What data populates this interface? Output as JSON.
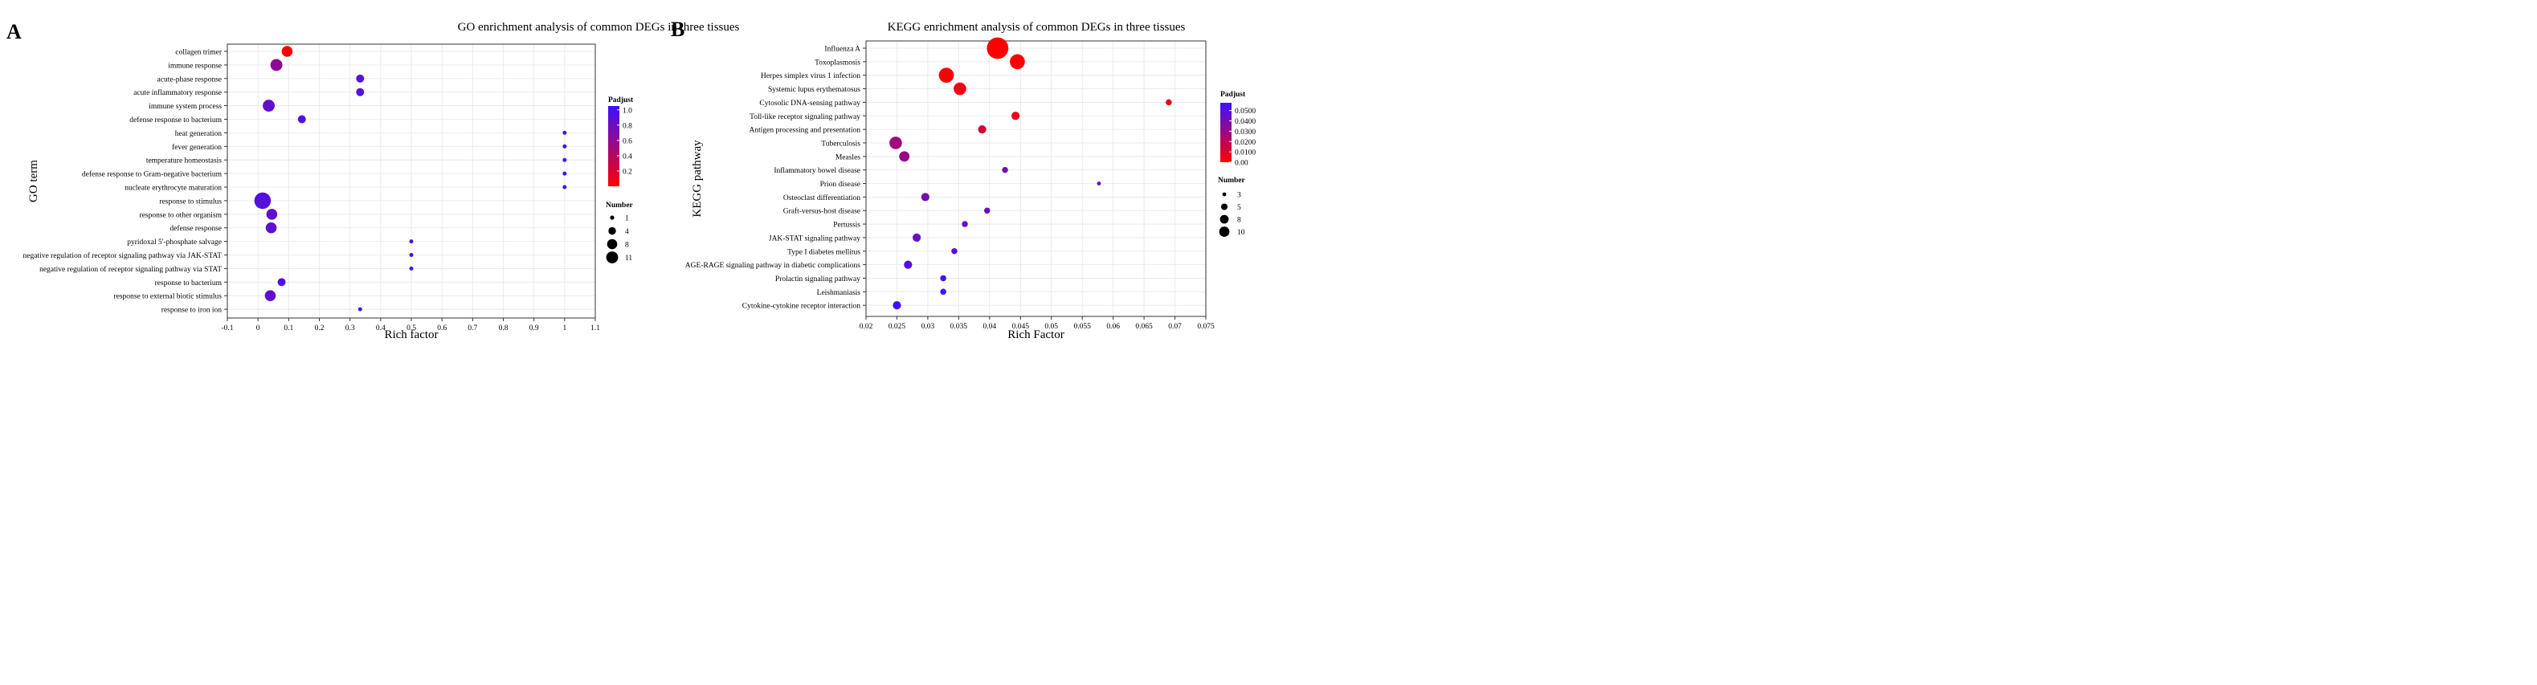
{
  "chart_data": [
    {
      "panel_label": "A",
      "type": "scatter",
      "title": "GO enrichment analysis of common DEGs in three tissues",
      "xlabel": "Rich factor",
      "ylabel": "GO term",
      "xlim": [
        -0.1,
        1.1
      ],
      "xticks": [
        "-0.1",
        "0",
        "0.1",
        "0.2",
        "0.3",
        "0.4",
        "0.5",
        "0.6",
        "0.7",
        "0.8",
        "0.9",
        "1",
        "1.1"
      ],
      "grid": true,
      "categories": [
        "collagen trimer",
        "immune response",
        "acute-phase response",
        "acute inflammatory response",
        "immune system process",
        "defense response to bacterium",
        "heat generation",
        "fever generation",
        "temperature homeostasis",
        "defense response to Gram-negative bacterium",
        "nucleate erythrocyte maturation",
        "response to stimulus",
        "response to other organism",
        "defense response",
        "pyridoxal 5'-phosphate salvage",
        "negative regulation of receptor signaling pathway via JAK-STAT",
        "negative regulation of receptor signaling pathway via STAT",
        "response to bacterium",
        "response to external biotic stimulus",
        "response to iron ion"
      ],
      "points": [
        {
          "x": 0.095,
          "padj": 0.0,
          "number": 4
        },
        {
          "x": 0.06,
          "padj": 0.6,
          "number": 5
        },
        {
          "x": 0.333,
          "padj": 0.9,
          "number": 2
        },
        {
          "x": 0.333,
          "padj": 0.9,
          "number": 2
        },
        {
          "x": 0.035,
          "padj": 0.85,
          "number": 5
        },
        {
          "x": 0.143,
          "padj": 0.95,
          "number": 2
        },
        {
          "x": 1.0,
          "padj": 1.0,
          "number": 1
        },
        {
          "x": 1.0,
          "padj": 1.0,
          "number": 1
        },
        {
          "x": 1.0,
          "padj": 1.0,
          "number": 1
        },
        {
          "x": 1.0,
          "padj": 1.0,
          "number": 1
        },
        {
          "x": 1.0,
          "padj": 1.0,
          "number": 1
        },
        {
          "x": 0.015,
          "padj": 0.9,
          "number": 11
        },
        {
          "x": 0.045,
          "padj": 0.85,
          "number": 4
        },
        {
          "x": 0.043,
          "padj": 0.85,
          "number": 4
        },
        {
          "x": 0.5,
          "padj": 1.0,
          "number": 1
        },
        {
          "x": 0.5,
          "padj": 1.0,
          "number": 1
        },
        {
          "x": 0.5,
          "padj": 1.0,
          "number": 1
        },
        {
          "x": 0.077,
          "padj": 0.95,
          "number": 2
        },
        {
          "x": 0.04,
          "padj": 0.85,
          "number": 4
        },
        {
          "x": 0.333,
          "padj": 1.0,
          "number": 1
        }
      ],
      "color_legend": {
        "title": "Padjust",
        "ticks": [
          "1.0",
          "0.8",
          "0.6",
          "0.4",
          "0.2"
        ],
        "min": 0.0,
        "max": 1.05,
        "low_color": "#ff0000",
        "high_color": "#3b12ff"
      },
      "size_legend": {
        "title": "Number",
        "labels": [
          "1",
          "4",
          "8",
          "11"
        ],
        "values": [
          1,
          4,
          8,
          11
        ]
      }
    },
    {
      "panel_label": "B",
      "type": "scatter",
      "title": "KEGG enrichment analysis of common DEGs in three tissues",
      "xlabel": "Rich Factor",
      "ylabel": "KEGG pathway",
      "xlim": [
        0.02,
        0.075
      ],
      "xticks": [
        "0.02",
        "0.025",
        "0.03",
        "0.035",
        "0.04",
        "0.045",
        "0.05",
        "0.055",
        "0.06",
        "0.065",
        "0.07",
        "0.075"
      ],
      "grid": true,
      "categories": [
        "Influenza A",
        "Toxoplasmosis",
        "Herpes simplex virus 1 infection",
        "Systemic lupus erythematosus",
        "Cytosolic DNA-sensing pathway",
        "Toll-like receptor signaling pathway",
        "Antigen processing and presentation",
        "Tuberculosis",
        "Measles",
        "Inflammatory bowel disease",
        "Prion disease",
        "Osteoclast differentiation",
        "Graft-versus-host disease",
        "Pertussis",
        "JAK-STAT signaling pathway",
        "Type I diabetes mellitus",
        "AGE-RAGE signaling pathway in diabetic complications",
        "Prolactin signaling pathway",
        "Leishmaniasis",
        "Cytokine-cytokine receptor interaction"
      ],
      "points": [
        {
          "x": 0.0413,
          "padj": 0.0,
          "number": 11
        },
        {
          "x": 0.0445,
          "padj": 0.0,
          "number": 8
        },
        {
          "x": 0.033,
          "padj": 0.002,
          "number": 8
        },
        {
          "x": 0.0352,
          "padj": 0.004,
          "number": 7
        },
        {
          "x": 0.069,
          "padj": 0.006,
          "number": 4
        },
        {
          "x": 0.0442,
          "padj": 0.006,
          "number": 5
        },
        {
          "x": 0.0388,
          "padj": 0.012,
          "number": 5
        },
        {
          "x": 0.0248,
          "padj": 0.028,
          "number": 7
        },
        {
          "x": 0.0262,
          "padj": 0.03,
          "number": 6
        },
        {
          "x": 0.0425,
          "padj": 0.04,
          "number": 4
        },
        {
          "x": 0.0577,
          "padj": 0.045,
          "number": 3
        },
        {
          "x": 0.0296,
          "padj": 0.04,
          "number": 5
        },
        {
          "x": 0.0396,
          "padj": 0.045,
          "number": 4
        },
        {
          "x": 0.036,
          "padj": 0.045,
          "number": 4
        },
        {
          "x": 0.0282,
          "padj": 0.045,
          "number": 5
        },
        {
          "x": 0.0343,
          "padj": 0.05,
          "number": 4
        },
        {
          "x": 0.0268,
          "padj": 0.05,
          "number": 5
        },
        {
          "x": 0.0325,
          "padj": 0.055,
          "number": 4
        },
        {
          "x": 0.0325,
          "padj": 0.055,
          "number": 4
        },
        {
          "x": 0.025,
          "padj": 0.056,
          "number": 5
        }
      ],
      "color_legend": {
        "title": "Padjust",
        "ticks": [
          "0.0500",
          "0.0400",
          "0.0300",
          "0.0200",
          "0.0100",
          "0.00"
        ],
        "min": 0.0,
        "max": 0.0575,
        "low_color": "#ff0000",
        "high_color": "#3b12ff"
      },
      "size_legend": {
        "title": "Number",
        "labels": [
          "3",
          "5",
          "8",
          "10"
        ],
        "values": [
          3,
          5,
          8,
          10
        ]
      }
    }
  ]
}
